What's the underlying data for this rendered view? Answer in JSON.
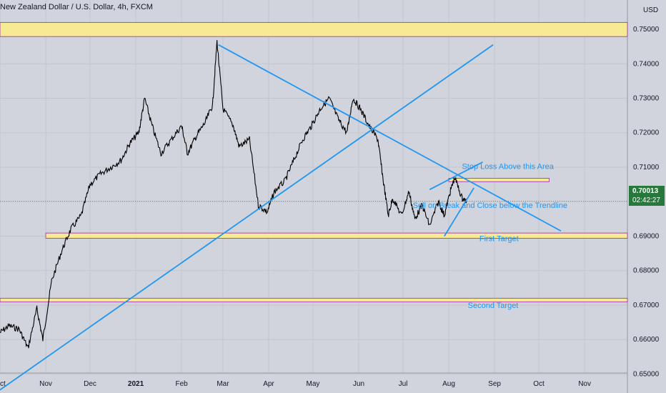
{
  "chart_title": "New Zealand Dollar / U.S. Dollar, 4h, FXCM",
  "currency": "USD",
  "last_price": "0.70013",
  "countdown": "02:42:27",
  "colors": {
    "background": "#d1d4dc",
    "candles": "#000000",
    "trendline": "#2196f3",
    "zone_fill": "#f6eb94",
    "zone_border": "#9c27b0",
    "annotation_text": "#2196f3",
    "last_price_badge": "#26793a"
  },
  "chart_data": {
    "type": "line",
    "title": "New Zealand Dollar / U.S. Dollar, 4h, FXCM",
    "ylabel": "USD",
    "ylim": [
      0.6445,
      0.7585
    ],
    "y_ticks": [
      "0.65000",
      "0.66000",
      "0.67000",
      "0.68000",
      "0.69000",
      "0.70000",
      "0.71000",
      "0.72000",
      "0.73000",
      "0.74000",
      "0.75000"
    ],
    "x_tick_labels": [
      "Oct",
      "Nov",
      "Dec",
      "2021",
      "Feb",
      "Mar",
      "Apr",
      "May",
      "Jun",
      "Jul",
      "Aug",
      "Sep",
      "Oct",
      "Nov"
    ],
    "grid": true,
    "series": [
      {
        "values": [
          {
            "x": "2020-10-01",
            "y": 0.662
          },
          {
            "x": "2020-10-07",
            "y": 0.664
          },
          {
            "x": "2020-10-14",
            "y": 0.663
          },
          {
            "x": "2020-10-20",
            "y": 0.6575
          },
          {
            "x": "2020-10-26",
            "y": 0.669
          },
          {
            "x": "2020-10-30",
            "y": 0.66
          },
          {
            "x": "2020-11-05",
            "y": 0.677
          },
          {
            "x": "2020-11-12",
            "y": 0.686
          },
          {
            "x": "2020-11-18",
            "y": 0.692
          },
          {
            "x": "2020-11-25",
            "y": 0.696
          },
          {
            "x": "2020-12-01",
            "y": 0.705
          },
          {
            "x": "2020-12-08",
            "y": 0.708
          },
          {
            "x": "2020-12-15",
            "y": 0.71
          },
          {
            "x": "2020-12-22",
            "y": 0.712
          },
          {
            "x": "2020-12-28",
            "y": 0.717
          },
          {
            "x": "2021-01-03",
            "y": 0.72
          },
          {
            "x": "2021-01-07",
            "y": 0.73
          },
          {
            "x": "2021-01-12",
            "y": 0.722
          },
          {
            "x": "2021-01-18",
            "y": 0.714
          },
          {
            "x": "2021-01-25",
            "y": 0.718
          },
          {
            "x": "2021-02-01",
            "y": 0.722
          },
          {
            "x": "2021-02-05",
            "y": 0.714
          },
          {
            "x": "2021-02-11",
            "y": 0.719
          },
          {
            "x": "2021-02-17",
            "y": 0.723
          },
          {
            "x": "2021-02-22",
            "y": 0.728
          },
          {
            "x": "2021-02-25",
            "y": 0.7465
          },
          {
            "x": "2021-03-01",
            "y": 0.727
          },
          {
            "x": "2021-03-08",
            "y": 0.722
          },
          {
            "x": "2021-03-12",
            "y": 0.716
          },
          {
            "x": "2021-03-19",
            "y": 0.718
          },
          {
            "x": "2021-03-25",
            "y": 0.699
          },
          {
            "x": "2021-03-31",
            "y": 0.697
          },
          {
            "x": "2021-04-05",
            "y": 0.703
          },
          {
            "x": "2021-04-12",
            "y": 0.706
          },
          {
            "x": "2021-04-18",
            "y": 0.712
          },
          {
            "x": "2021-04-24",
            "y": 0.718
          },
          {
            "x": "2021-04-30",
            "y": 0.722
          },
          {
            "x": "2021-05-06",
            "y": 0.727
          },
          {
            "x": "2021-05-12",
            "y": 0.73
          },
          {
            "x": "2021-05-18",
            "y": 0.724
          },
          {
            "x": "2021-05-24",
            "y": 0.72
          },
          {
            "x": "2021-05-28",
            "y": 0.73
          },
          {
            "x": "2021-06-02",
            "y": 0.727
          },
          {
            "x": "2021-06-08",
            "y": 0.722
          },
          {
            "x": "2021-06-14",
            "y": 0.718
          },
          {
            "x": "2021-06-17",
            "y": 0.708
          },
          {
            "x": "2021-06-21",
            "y": 0.696
          },
          {
            "x": "2021-06-24",
            "y": 0.701
          },
          {
            "x": "2021-06-30",
            "y": 0.696
          },
          {
            "x": "2021-07-05",
            "y": 0.703
          },
          {
            "x": "2021-07-09",
            "y": 0.695
          },
          {
            "x": "2021-07-14",
            "y": 0.699
          },
          {
            "x": "2021-07-19",
            "y": 0.693
          },
          {
            "x": "2021-07-25",
            "y": 0.7
          },
          {
            "x": "2021-07-29",
            "y": 0.696
          },
          {
            "x": "2021-08-02",
            "y": 0.703
          },
          {
            "x": "2021-08-05",
            "y": 0.707
          },
          {
            "x": "2021-08-10",
            "y": 0.701
          },
          {
            "x": "2021-08-13",
            "y": 0.7
          }
        ]
      }
    ],
    "zones": [
      {
        "x0": "2020-10-01",
        "x1": "2021-11-30",
        "y_low": 0.7479,
        "y_high": 0.752
      },
      {
        "x0": "2020-11-01",
        "x1": "2021-11-30",
        "y_low": 0.6894,
        "y_high": 0.6909
      },
      {
        "x0": "2020-10-01",
        "x1": "2021-11-30",
        "y_low": 0.6709,
        "y_high": 0.672
      },
      {
        "x0": "2021-08-01",
        "x1": "2021-10-08",
        "y_low": 0.7058,
        "y_high": 0.7068
      }
    ],
    "trendlines": [
      {
        "x0": "2021-02-26",
        "y0": 0.7455,
        "x1": "2021-10-16",
        "y1": 0.6915
      },
      {
        "x0": "2020-10-01",
        "y0": 0.6454,
        "x1": "2021-08-31",
        "y1": 0.7455
      },
      {
        "x0": "2021-07-19",
        "y0": 0.7035,
        "x1": "2021-08-24",
        "y1": 0.7115
      },
      {
        "x0": "2021-07-29",
        "y0": 0.69,
        "x1": "2021-08-18",
        "y1": 0.704
      }
    ],
    "annotations": [
      {
        "text": "Stop Loss Above this Area",
        "x": "2021-09-10",
        "y": 0.7095
      },
      {
        "text": "Sell on Break and Close below the Trendline",
        "x": "2021-08-29",
        "y": 0.6982
      },
      {
        "text": "First Target",
        "x": "2021-09-04",
        "y": 0.6885
      },
      {
        "text": "Second Target",
        "x": "2021-08-31",
        "y": 0.6692
      }
    ]
  }
}
